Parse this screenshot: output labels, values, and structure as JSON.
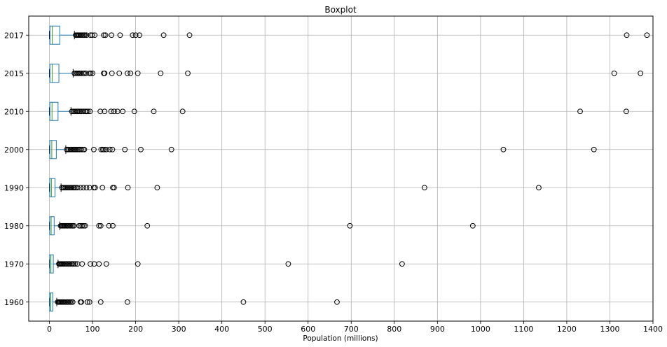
{
  "chart_data": {
    "type": "boxplot",
    "title": "Boxplot",
    "xlabel": "Population (millions)",
    "ylabel": "",
    "xlim": [
      -48,
      1400
    ],
    "xticks": [
      0,
      100,
      200,
      300,
      400,
      500,
      600,
      700,
      800,
      900,
      1000,
      1100,
      1200,
      1300,
      1400
    ],
    "grid": true,
    "box_color": "#1f77b4",
    "median_color": "#2ca02c",
    "orientation": "horizontal",
    "series": [
      {
        "name": "2017",
        "q1": 1.3,
        "median": 6.5,
        "q3": 24,
        "whisker_low": 0,
        "whisker_high": 58,
        "outliers": [
          61,
          63,
          65,
          67,
          69,
          72,
          74,
          77,
          80,
          82,
          86,
          95,
          99,
          105,
          126,
          130,
          144,
          164,
          193,
          200,
          209,
          265,
          325,
          1339,
          1386
        ]
      },
      {
        "name": "2015",
        "q1": 1.2,
        "median": 6.3,
        "q3": 22,
        "whisker_low": 0,
        "whisker_high": 55,
        "outliers": [
          58,
          61,
          64,
          66,
          69,
          71,
          74,
          78,
          81,
          85,
          93,
          96,
          100,
          126,
          128,
          145,
          162,
          181,
          188,
          205,
          258,
          321,
          1310,
          1371
        ]
      },
      {
        "name": "2010",
        "q1": 1.1,
        "median": 6,
        "q3": 20,
        "whisker_low": 0,
        "whisker_high": 50,
        "outliers": [
          52,
          55,
          58,
          61,
          64,
          66,
          69,
          71,
          75,
          79,
          83,
          86,
          89,
          94,
          118,
          128,
          143,
          150,
          158,
          170,
          197,
          242,
          309,
          1231,
          1338
        ]
      },
      {
        "name": "2000",
        "q1": 1,
        "median": 5.5,
        "q3": 16,
        "whisker_low": 0,
        "whisker_high": 38,
        "outliers": [
          40,
          43,
          46,
          49,
          52,
          55,
          58,
          61,
          64,
          67,
          70,
          74,
          78,
          81,
          103,
          120,
          124,
          127,
          132,
          140,
          146,
          175,
          212,
          283,
          1053,
          1263
        ]
      },
      {
        "name": "1990",
        "q1": 0.9,
        "median": 4.5,
        "q3": 13,
        "whisker_low": 0,
        "whisker_high": 27,
        "outliers": [
          29,
          32,
          34,
          37,
          40,
          43,
          46,
          49,
          52,
          55,
          58,
          61,
          65,
          72,
          79,
          86,
          93,
          103,
          106,
          123,
          147,
          150,
          182,
          250,
          870,
          1135
        ]
      },
      {
        "name": "1980",
        "q1": 0.8,
        "median": 4,
        "q3": 11,
        "whisker_low": 0,
        "whisker_high": 24,
        "outliers": [
          26,
          28,
          30,
          32,
          34,
          36,
          39,
          42,
          45,
          48,
          51,
          54,
          57,
          69,
          72,
          76,
          80,
          83,
          115,
          119,
          138,
          147,
          227,
          697,
          982
        ]
      },
      {
        "name": "1970",
        "q1": 0.7,
        "median": 3.5,
        "q3": 9,
        "whisker_low": 0,
        "whisker_high": 20,
        "outliers": [
          22,
          24,
          26,
          28,
          30,
          32,
          35,
          38,
          41,
          44,
          47,
          50,
          53,
          56,
          60,
          65,
          76,
          95,
          104,
          115,
          132,
          205,
          554,
          818
        ]
      },
      {
        "name": "1960",
        "q1": 0.6,
        "median": 3,
        "q3": 8,
        "whisker_low": 0,
        "whisker_high": 17,
        "outliers": [
          19,
          21,
          23,
          25,
          27,
          29,
          31,
          33,
          36,
          39,
          42,
          45,
          48,
          51,
          54,
          72,
          74,
          88,
          93,
          119,
          181,
          450,
          667
        ]
      }
    ]
  }
}
